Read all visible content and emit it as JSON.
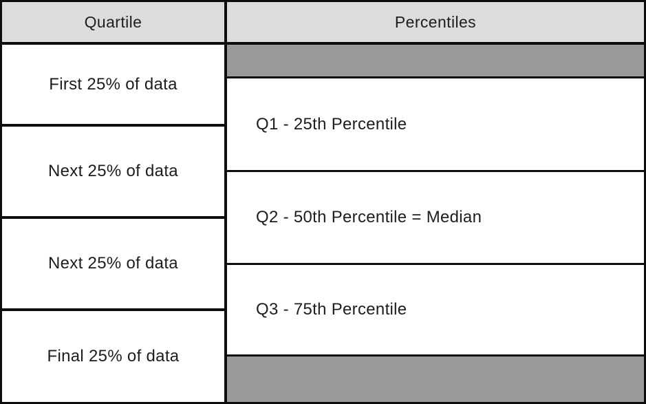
{
  "header": {
    "quartile": "Quartile",
    "percentiles": "Percentiles"
  },
  "quartile_rows": [
    "First 25% of data",
    "Next 25% of data",
    "Next 25% of data",
    "Final 25% of data"
  ],
  "percentile_rows": [
    "Q1 - 25th Percentile",
    "Q2 - 50th Percentile = Median",
    "Q3 - 75th Percentile"
  ],
  "colors": {
    "header_bg": "#dcdcdc",
    "band_bg": "#999999",
    "cell_bg": "#ffffff",
    "border": "#0d0d0d",
    "text": "#1d1d1d"
  }
}
